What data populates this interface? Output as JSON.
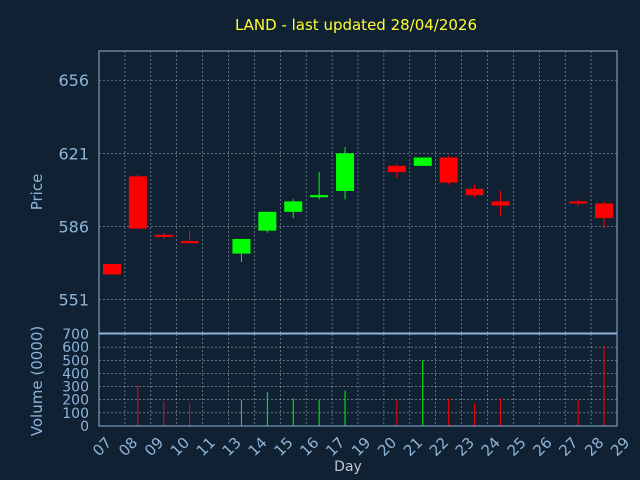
{
  "chart_data": {
    "type": "candlestick",
    "title": "LAND - last updated 28/04/2026",
    "xlabel": "Day",
    "ylabel": "Price",
    "volume_label": "Volume (0000)",
    "colors": {
      "up": "#00ff00",
      "down": "#ff0000",
      "background": "#0f2133",
      "title": "#ffff33",
      "axis": "#8eb4d9"
    },
    "price_ticks": [
      "551",
      "586",
      "621",
      "656"
    ],
    "volume_ticks": [
      "0",
      "100",
      "200",
      "300",
      "400",
      "500",
      "600",
      "700"
    ],
    "ylim": [
      535,
      670
    ],
    "volume_ylim": [
      0,
      700
    ],
    "grid": true,
    "x_ticks": [
      "07",
      "08",
      "09",
      "10",
      "11",
      "13",
      "14",
      "15",
      "16",
      "17",
      "19",
      "20",
      "21",
      "22",
      "23",
      "24",
      "25",
      "26",
      "27",
      "28",
      "29"
    ],
    "candles": [
      {
        "day": "07",
        "open": 568,
        "high": 568,
        "low": 563,
        "close": 563,
        "volume": 0
      },
      {
        "day": "08",
        "open": 610,
        "high": 611,
        "low": 585,
        "close": 585,
        "volume": 310
      },
      {
        "day": "09",
        "open": 582,
        "high": 583,
        "low": 580,
        "close": 581,
        "volume": 190
      },
      {
        "day": "10",
        "open": 579,
        "high": 584,
        "low": 578,
        "close": 578,
        "volume": 170
      },
      {
        "day": "13",
        "open": 573,
        "high": 580,
        "low": 569,
        "close": 580,
        "volume": 200
      },
      {
        "day": "14",
        "open": 584,
        "high": 593,
        "low": 583,
        "close": 593,
        "volume": 260
      },
      {
        "day": "15",
        "open": 593,
        "high": 599,
        "low": 590,
        "close": 598,
        "volume": 210
      },
      {
        "day": "16",
        "open": 600,
        "high": 612,
        "low": 599,
        "close": 601,
        "volume": 200
      },
      {
        "day": "17",
        "open": 603,
        "high": 624,
        "low": 599,
        "close": 621,
        "volume": 270
      },
      {
        "day": "20",
        "open": 615,
        "high": 616,
        "low": 609,
        "close": 612,
        "volume": 200
      },
      {
        "day": "21",
        "open": 615,
        "high": 619,
        "low": 615,
        "close": 619,
        "volume": 500
      },
      {
        "day": "22",
        "open": 619,
        "high": 620,
        "low": 606,
        "close": 607,
        "volume": 210
      },
      {
        "day": "23",
        "open": 604,
        "high": 606,
        "low": 600,
        "close": 601,
        "volume": 170
      },
      {
        "day": "24",
        "open": 598,
        "high": 603,
        "low": 591,
        "close": 596,
        "volume": 210
      },
      {
        "day": "27",
        "open": 598,
        "high": 599,
        "low": 596,
        "close": 597,
        "volume": 200
      },
      {
        "day": "28",
        "open": 597,
        "high": 598,
        "low": 585,
        "close": 590,
        "volume": 610
      }
    ]
  }
}
